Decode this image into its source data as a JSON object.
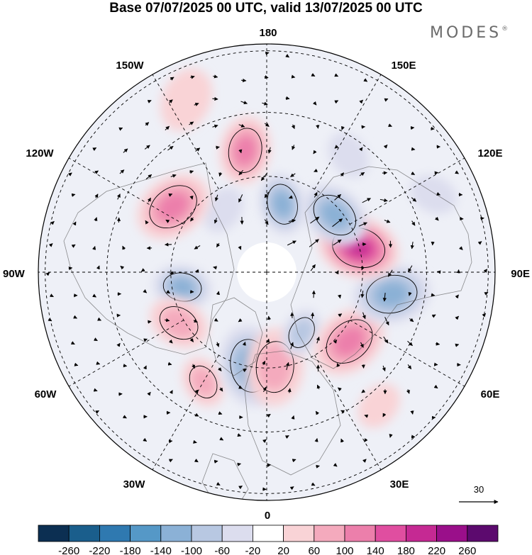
{
  "title": "Base 07/07/2025 00 UTC, valid 13/07/2025 00 UTC",
  "brand": {
    "name": "MODES",
    "mark": "®"
  },
  "map": {
    "projection": "north polar stereographic",
    "longitude_labels": {
      "top": "180",
      "top_left": "150W",
      "top_right": "150E",
      "upper_left": "120W",
      "upper_right": "120E",
      "left": "90W",
      "right": "90E",
      "lower_left": "60W",
      "lower_right": "60E",
      "bottom_left": "30W",
      "bottom_right": "30E",
      "bottom": "0"
    }
  },
  "vector_reference": {
    "value": "30"
  },
  "colorbar": {
    "ticks": [
      "-260",
      "-220",
      "-180",
      "-140",
      "-100",
      "-60",
      "-20",
      "20",
      "60",
      "100",
      "140",
      "180",
      "220",
      "260"
    ],
    "colors": [
      "#0c2f52",
      "#1a5e8c",
      "#2f79b0",
      "#5598c7",
      "#8bb1d6",
      "#b8c8e2",
      "#dcddee",
      "#ffffff",
      "#f9d3d6",
      "#f4aabd",
      "#ec7fab",
      "#e04ea0",
      "#c52993",
      "#9a0f8a",
      "#5c0a6e"
    ]
  },
  "anomalies": [
    {
      "lon": 167,
      "colat": 22,
      "r": 38,
      "level": -3
    },
    {
      "lon": 190,
      "colat": 39,
      "r": 42,
      "level": 3
    },
    {
      "lon": 215,
      "colat": 24,
      "r": 30,
      "level": -1
    },
    {
      "lon": 235,
      "colat": 36,
      "r": 48,
      "level": 3
    },
    {
      "lon": 280,
      "colat": 27,
      "r": 36,
      "level": -3
    },
    {
      "lon": 300,
      "colat": 32,
      "r": 38,
      "level": 2
    },
    {
      "lon": 330,
      "colat": 40,
      "r": 32,
      "level": 2
    },
    {
      "lon": 350,
      "colat": 30,
      "r": 50,
      "level": -3
    },
    {
      "lon": 5,
      "colat": 30,
      "r": 48,
      "level": 2
    },
    {
      "lon": 30,
      "colat": 22,
      "r": 30,
      "level": -2
    },
    {
      "lon": 50,
      "colat": 34,
      "r": 48,
      "level": 3
    },
    {
      "lon": 80,
      "colat": 40,
      "r": 48,
      "level": -3
    },
    {
      "lon": 105,
      "colat": 30,
      "r": 50,
      "level": 5
    },
    {
      "lon": 130,
      "colat": 28,
      "r": 44,
      "level": -3
    },
    {
      "lon": 145,
      "colat": 45,
      "r": 30,
      "level": -1
    },
    {
      "lon": 205,
      "colat": 60,
      "r": 40,
      "level": 1
    },
    {
      "lon": 40,
      "colat": 55,
      "r": 30,
      "level": 1
    },
    {
      "lon": 115,
      "colat": 58,
      "r": 30,
      "level": -1
    }
  ]
}
